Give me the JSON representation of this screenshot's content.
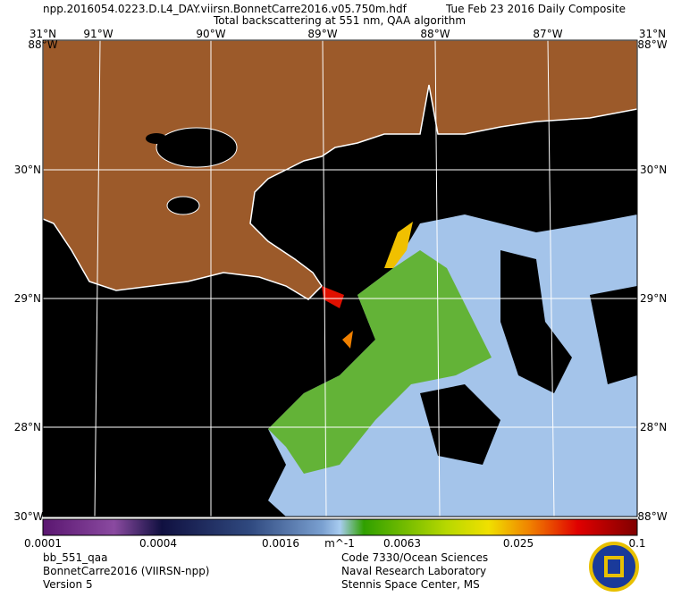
{
  "header": {
    "file": "npp.2016054.0223.D.L4_DAY.viirsn.BonnetCarre2016.v05.750m.hdf",
    "date": "Tue Feb 23 2016 Daily Composite",
    "title": "Total backscattering at 551 nm, QAA algorithm"
  },
  "map": {
    "top_labels": [
      "91°W",
      "90°W",
      "89°W",
      "88°W",
      "87°W"
    ],
    "lat_labels": [
      "30°N",
      "29°N",
      "28°N"
    ],
    "corner_top": [
      "31°N",
      "88°W"
    ],
    "corner_bottom": [
      "30°W",
      "88°W"
    ]
  },
  "colorbar": {
    "ticks": [
      "0.0001",
      "0.0004",
      "0.0016",
      "0.0063",
      "0.025",
      "0.1"
    ],
    "unit": "m^-1"
  },
  "footer": {
    "left": [
      "bb_551_qaa",
      "BonnetCarre2016 (VIIRSN-npp)",
      "Version 5"
    ],
    "right": [
      "Code 7330/Ocean Sciences",
      "Naval Research Laboratory",
      "Stennis Space Center, MS"
    ]
  }
}
